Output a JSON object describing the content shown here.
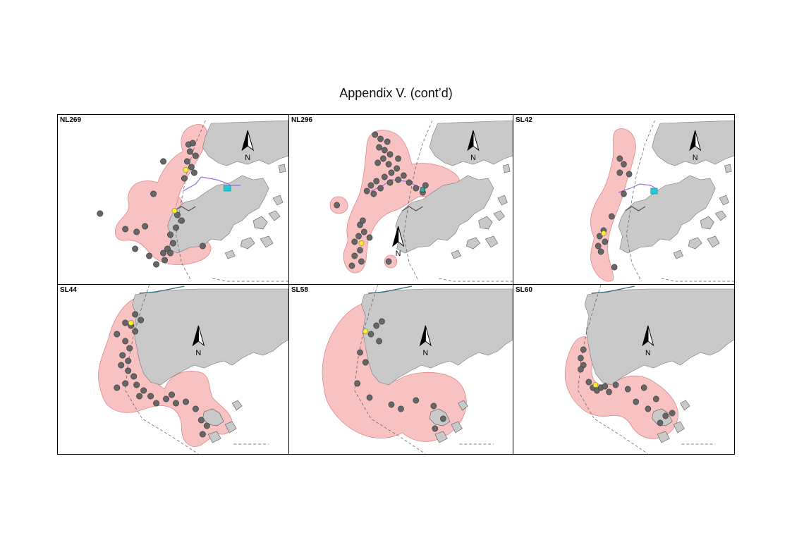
{
  "title": "Appendix V.  (cont’d)",
  "north_label": "N",
  "colors": {
    "land": "#c9c9c9",
    "home_range": "#f9c2c2",
    "home_range_edge": "#d98888",
    "location_point": "#666666",
    "capture_point": "#ffee22",
    "route": "#9a6fd6",
    "reclamation": "#22c9d6"
  },
  "panels": [
    {
      "id": "NL269",
      "label": "NL269",
      "has_route": true
    },
    {
      "id": "NL296",
      "label": "NL296",
      "has_route": true
    },
    {
      "id": "SL42",
      "label": "SL42",
      "has_route": true
    },
    {
      "id": "SL44",
      "label": "SL44",
      "has_route": false
    },
    {
      "id": "SL58",
      "label": "SL58",
      "has_route": false
    },
    {
      "id": "SL60",
      "label": "SL60",
      "has_route": false
    }
  ]
}
